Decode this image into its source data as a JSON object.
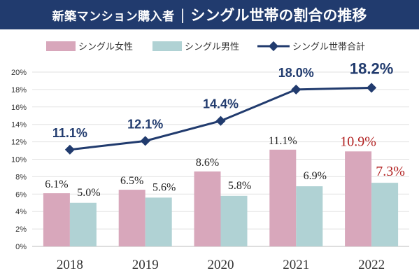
{
  "header": {
    "title_left": "新築マンション購入者",
    "separator": "|",
    "title_right": "シングル世帯の割合の推移"
  },
  "chart_data": {
    "type": "bar",
    "categories": [
      "2018",
      "2019",
      "2020",
      "2021",
      "2022"
    ],
    "series": [
      {
        "name": "シングル女性",
        "kind": "bar",
        "color": "#d8a7bb",
        "values": [
          6.1,
          6.5,
          8.6,
          11.1,
          10.9
        ],
        "labels": [
          "6.1%",
          "6.5%",
          "8.6%",
          "11.1%",
          "10.9%"
        ]
      },
      {
        "name": "シングル男性",
        "kind": "bar",
        "color": "#b0d2d4",
        "values": [
          5.0,
          5.6,
          5.8,
          6.9,
          7.3
        ],
        "labels": [
          "5.0%",
          "5.6%",
          "5.8%",
          "6.9%",
          "7.3%"
        ]
      },
      {
        "name": "シングル世帯合計",
        "kind": "line",
        "color": "#213b6e",
        "values": [
          11.1,
          12.1,
          14.4,
          18.0,
          18.2
        ],
        "labels": [
          "11.1%",
          "12.1%",
          "14.4%",
          "18.0%",
          "18.2%"
        ]
      }
    ],
    "highlight_color": "#b22222",
    "ylim": [
      0,
      20
    ],
    "yticks": [
      "0%",
      "2%",
      "4%",
      "6%",
      "8%",
      "10%",
      "12%",
      "14%",
      "16%",
      "18%",
      "20%"
    ],
    "grid": true,
    "legend": "top"
  }
}
